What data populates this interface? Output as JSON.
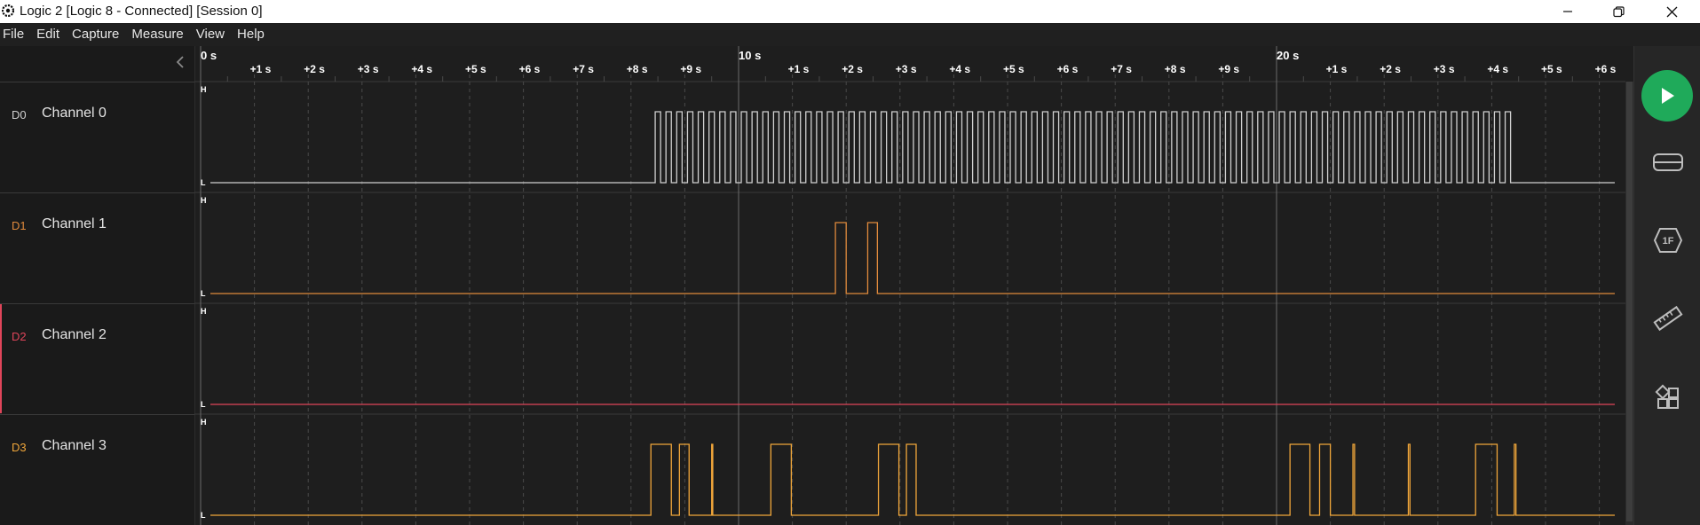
{
  "window": {
    "title": "Logic 2 [Logic 8 - Connected] [Session 0]",
    "minimize_glyph": "—",
    "maximize_glyph": "❐",
    "close_glyph": "✕"
  },
  "menu": [
    "File",
    "Edit",
    "Capture",
    "Measure",
    "View",
    "Help"
  ],
  "ruler": {
    "major_labels": [
      {
        "label": "0 s",
        "t": 0
      },
      {
        "label": "10 s",
        "t": 10
      },
      {
        "label": "20 s",
        "t": 20
      }
    ],
    "minor_labels": [
      {
        "label": "+1 s",
        "t": 1
      },
      {
        "label": "+2 s",
        "t": 2
      },
      {
        "label": "+3 s",
        "t": 3
      },
      {
        "label": "+4 s",
        "t": 4
      },
      {
        "label": "+5 s",
        "t": 5
      },
      {
        "label": "+6 s",
        "t": 6
      },
      {
        "label": "+7 s",
        "t": 7
      },
      {
        "label": "+8 s",
        "t": 8
      },
      {
        "label": "+9 s",
        "t": 9
      },
      {
        "label": "+1 s",
        "t": 11
      },
      {
        "label": "+2 s",
        "t": 12
      },
      {
        "label": "+3 s",
        "t": 13
      },
      {
        "label": "+4 s",
        "t": 14
      },
      {
        "label": "+5 s",
        "t": 15
      },
      {
        "label": "+6 s",
        "t": 16
      },
      {
        "label": "+7 s",
        "t": 17
      },
      {
        "label": "+8 s",
        "t": 18
      },
      {
        "label": "+9 s",
        "t": 19
      },
      {
        "label": "+1 s",
        "t": 21
      },
      {
        "label": "+2 s",
        "t": 22
      },
      {
        "label": "+3 s",
        "t": 23
      },
      {
        "label": "+4 s",
        "t": 24
      },
      {
        "label": "+5 s",
        "t": 25
      },
      {
        "label": "+6 s",
        "t": 26
      }
    ],
    "visible_range_s": [
      0,
      26.6
    ]
  },
  "level_labels": {
    "high": "H",
    "low": "L"
  },
  "channels": [
    {
      "id": "D0",
      "name": "Channel 0",
      "color": "#d0d0d0",
      "pulse_train": {
        "start_s": 8.45,
        "end_s": 24.5,
        "period_s": 0.2,
        "duty": 0.5
      }
    },
    {
      "id": "D1",
      "name": "Channel 1",
      "color": "#e08a3c",
      "high_intervals_s": [
        [
          11.8,
          12.0
        ],
        [
          12.4,
          12.58
        ]
      ]
    },
    {
      "id": "D2",
      "name": "Channel 2",
      "color": "#e0455a",
      "high_intervals_s": []
    },
    {
      "id": "D3",
      "name": "Channel 3",
      "color": "#f0a63a",
      "high_intervals_s": [
        [
          8.37,
          8.75
        ],
        [
          8.9,
          9.08
        ],
        [
          9.5,
          9.52
        ],
        [
          10.6,
          10.98
        ],
        [
          12.6,
          12.98
        ],
        [
          13.12,
          13.3
        ],
        [
          20.25,
          20.62
        ],
        [
          20.8,
          21.0
        ],
        [
          21.42,
          21.45
        ],
        [
          22.45,
          22.48
        ],
        [
          23.7,
          24.1
        ],
        [
          24.42,
          24.45
        ]
      ]
    }
  ],
  "right_panel": {
    "play_icon": "play-icon",
    "icons": [
      "device-icon",
      "analyzers-icon",
      "measure-ruler-icon",
      "extensions-icon"
    ],
    "analyzer_badge": "1F"
  }
}
